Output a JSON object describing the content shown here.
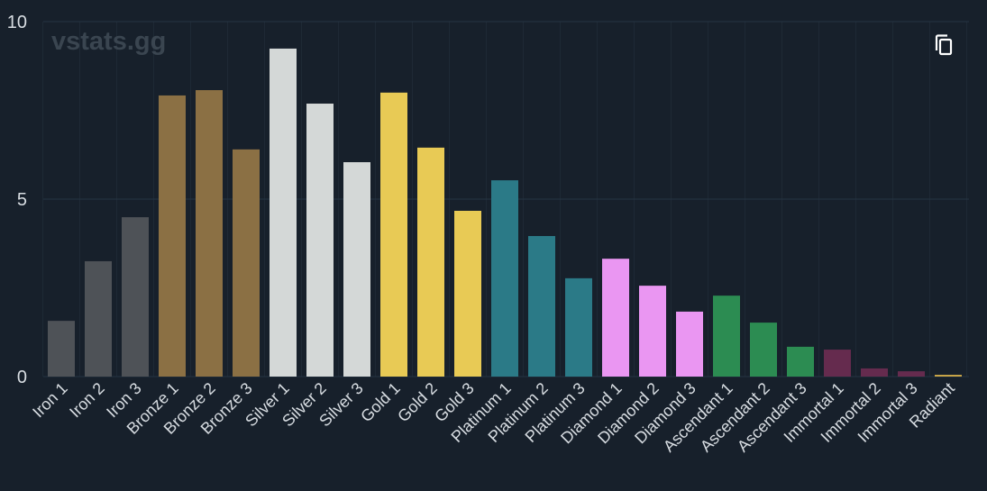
{
  "watermark": "vstats.gg",
  "copy_icon": "copy-icon",
  "chart_data": {
    "type": "bar",
    "categories": [
      "Iron 1",
      "Iron 2",
      "Iron 3",
      "Bronze 1",
      "Bronze 2",
      "Bronze 3",
      "Silver 1",
      "Silver 2",
      "Silver 3",
      "Gold 1",
      "Gold 2",
      "Gold 3",
      "Platinum 1",
      "Platinum 2",
      "Platinum 3",
      "Diamond 1",
      "Diamond 2",
      "Diamond 3",
      "Ascendant 1",
      "Ascendant 2",
      "Ascendant 3",
      "Immortal 1",
      "Immortal 2",
      "Immortal 3",
      "Radiant"
    ],
    "values": [
      1.57,
      3.25,
      4.49,
      7.92,
      8.07,
      6.4,
      9.24,
      7.69,
      6.04,
      8.0,
      6.45,
      4.67,
      5.53,
      3.96,
      2.77,
      3.32,
      2.56,
      1.83,
      2.28,
      1.52,
      0.84,
      0.76,
      0.23,
      0.15,
      0.05
    ],
    "colors": [
      "#4e5257",
      "#4e5257",
      "#4e5257",
      "#8b7044",
      "#8b7044",
      "#8b7044",
      "#d4d8d7",
      "#d4d8d7",
      "#d4d8d7",
      "#e8ca55",
      "#e8ca55",
      "#e8ca55",
      "#2b7a87",
      "#2b7a87",
      "#2b7a87",
      "#ea96f2",
      "#ea96f2",
      "#ea96f2",
      "#2c8c52",
      "#2c8c52",
      "#2c8c52",
      "#652b4e",
      "#652b4e",
      "#652b4e",
      "#c9a648"
    ],
    "ylim": [
      0,
      10
    ],
    "yticks": [
      "0",
      "5",
      "10"
    ],
    "grid": true,
    "xlabel": "",
    "ylabel": "",
    "title": ""
  }
}
